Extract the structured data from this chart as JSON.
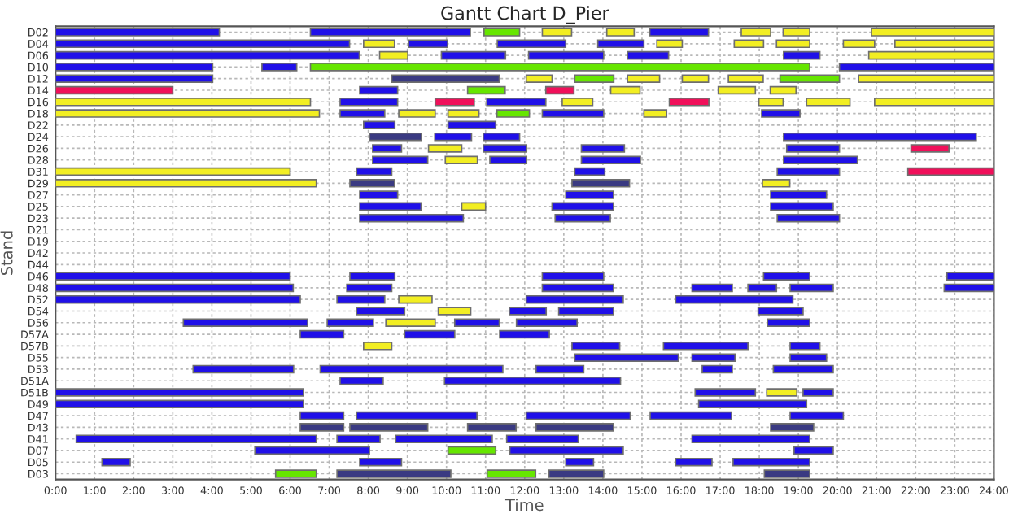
{
  "chart_data": {
    "type": "bar",
    "orientation": "horizontal",
    "title": "Gantt Chart D_Pier",
    "xlabel": "Time",
    "ylabel": "Stand",
    "categories": [
      "D02",
      "D04",
      "D06",
      "D10",
      "D12",
      "D14",
      "D16",
      "D18",
      "D22",
      "D24",
      "D26",
      "D28",
      "D31",
      "D29",
      "D27",
      "D25",
      "D23",
      "D21",
      "D19",
      "D42",
      "D44",
      "D46",
      "D48",
      "D52",
      "D54",
      "D56",
      "D57A",
      "D57B",
      "D55",
      "D53",
      "D51A",
      "D51B",
      "D49",
      "D47",
      "D43",
      "D41",
      "D07",
      "D05",
      "D03"
    ],
    "xlim": [
      0,
      24
    ],
    "xticks": [
      {
        "value": 0,
        "label": "0:00"
      },
      {
        "value": 1,
        "label": "1:00"
      },
      {
        "value": 2,
        "label": "2:00"
      },
      {
        "value": 3,
        "label": "3:00"
      },
      {
        "value": 4,
        "label": "4:00"
      },
      {
        "value": 5,
        "label": "5:00"
      },
      {
        "value": 6,
        "label": "6:00"
      },
      {
        "value": 7,
        "label": "7:00"
      },
      {
        "value": 8,
        "label": "8:00"
      },
      {
        "value": 9,
        "label": "9:00"
      },
      {
        "value": 10,
        "label": "10:00"
      },
      {
        "value": 11,
        "label": "11:00"
      },
      {
        "value": 12,
        "label": "12:00"
      },
      {
        "value": 13,
        "label": "13:00"
      },
      {
        "value": 14,
        "label": "14:00"
      },
      {
        "value": 15,
        "label": "15:00"
      },
      {
        "value": 16,
        "label": "16:00"
      },
      {
        "value": 17,
        "label": "17:00"
      },
      {
        "value": 18,
        "label": "18:00"
      },
      {
        "value": 19,
        "label": "19:00"
      },
      {
        "value": 20,
        "label": "20:00"
      },
      {
        "value": 21,
        "label": "21:00"
      },
      {
        "value": 22,
        "label": "22:00"
      },
      {
        "value": 23,
        "label": "23:00"
      },
      {
        "value": 24,
        "label": "24:00"
      }
    ],
    "grid": true,
    "series": [
      {
        "base": [
          0,
          0,
          0,
          0,
          0,
          0,
          0,
          0,
          7.88,
          8.03,
          8.11,
          8.11,
          0,
          0,
          7.78,
          7.78,
          7.78,
          null,
          null,
          null,
          null,
          0,
          0,
          0,
          7.7,
          3.27,
          6.26,
          7.88,
          13.28,
          3.52,
          7.28,
          0,
          0,
          6.26,
          6.26,
          0.53,
          5.1,
          1.19,
          5.63
        ],
        "values": [
          4.19,
          7.52,
          7.77,
          4.02,
          4.02,
          3.0,
          6.52,
          6.75,
          0.8,
          1.33,
          0.74,
          1.41,
          6.0,
          6.67,
          0.97,
          1.57,
          2.65,
          null,
          null,
          null,
          null,
          6.0,
          6.08,
          6.26,
          1.23,
          3.18,
          1.11,
          0.72,
          2.65,
          2.57,
          1.1,
          6.34,
          6.34,
          1.11,
          1.11,
          6.14,
          2.93,
          0.72,
          1.04
        ],
        "colors": [
          "#2010e8",
          "#2010e8",
          "#2010e8",
          "#2010e8",
          "#2010e8",
          "#f0105a",
          "#f2ee22",
          "#f2ee22",
          "#2010e8",
          "#3a3a82",
          "#2010e8",
          "#2010e8",
          "#f2ee22",
          "#f2ee22",
          "#2010e8",
          "#2010e8",
          "#2010e8",
          null,
          null,
          null,
          null,
          "#2010e8",
          "#2010e8",
          "#2010e8",
          "#2010e8",
          "#2010e8",
          "#2010e8",
          "#f2ee22",
          "#2010e8",
          "#2010e8",
          "#2010e8",
          "#2010e8",
          "#2010e8",
          "#2010e8",
          "#3a3a82",
          "#2010e8",
          "#2010e8",
          "#2010e8",
          "#66e600"
        ]
      },
      {
        "base": [
          6.52,
          7.88,
          8.29,
          5.28,
          8.6,
          7.78,
          7.28,
          7.28,
          10.04,
          9.7,
          9.54,
          9.97,
          7.7,
          7.53,
          13.05,
          10.39,
          12.78,
          null,
          null,
          null,
          null,
          7.53,
          7.45,
          7.2,
          9.79,
          6.95,
          8.93,
          13.21,
          16.28,
          6.77,
          9.95,
          16.36,
          16.45,
          7.7,
          7.53,
          7.2,
          10.04,
          7.78,
          7.2
        ],
        "values": [
          4.09,
          0.79,
          0.72,
          0.89,
          2.75,
          0.97,
          1.47,
          1.14,
          1.22,
          0.94,
          0.85,
          0.82,
          0.9,
          1.14,
          1.22,
          0.61,
          1.41,
          null,
          null,
          null,
          null,
          1.15,
          1.15,
          1.22,
          0.83,
          1.18,
          1.28,
          1.22,
          1.1,
          4.67,
          4.5,
          1.54,
          2.76,
          3.08,
          1.99,
          1.1,
          1.22,
          1.07,
          2.91
        ],
        "colors": [
          "#2010e8",
          "#f2ee22",
          "#f2ee22",
          "#2010e8",
          "#3a3a82",
          "#2010e8",
          "#2010e8",
          "#2010e8",
          "#2010e8",
          "#2010e8",
          "#f2ee22",
          "#f2ee22",
          "#2010e8",
          "#3a3a82",
          "#2010e8",
          "#f2ee22",
          "#2010e8",
          null,
          null,
          null,
          null,
          "#2010e8",
          "#2010e8",
          "#2010e8",
          "#f2ee22",
          "#2010e8",
          "#2010e8",
          "#2010e8",
          "#2010e8",
          "#2010e8",
          "#2010e8",
          "#2010e8",
          "#2010e8",
          "#2010e8",
          "#3a3a82",
          "#2010e8",
          "#66e600",
          "#2010e8",
          "#3a3a82"
        ]
      },
      {
        "base": [
          10.96,
          9.03,
          9.87,
          6.52,
          12.04,
          10.54,
          9.71,
          8.78,
          null,
          10.94,
          10.94,
          11.11,
          13.28,
          13.21,
          18.29,
          12.7,
          18.46,
          null,
          null,
          null,
          null,
          12.45,
          12.45,
          8.78,
          11.61,
          8.45,
          11.36,
          15.55,
          18.79,
          12.29,
          null,
          18.19,
          null,
          12.04,
          10.54,
          8.7,
          11.62,
          13.05,
          11.04
        ],
        "values": [
          0.91,
          1.0,
          1.64,
          12.77,
          0.66,
          0.96,
          1.0,
          0.93,
          null,
          0.93,
          1.11,
          0.94,
          0.77,
          1.47,
          1.43,
          1.57,
          1.59,
          null,
          null,
          null,
          null,
          1.57,
          1.82,
          0.85,
          0.94,
          1.26,
          1.27,
          2.16,
          0.93,
          1.22,
          null,
          0.77,
          null,
          2.66,
          1.24,
          2.47,
          2.9,
          0.71,
          1.24
        ],
        "colors": [
          "#66e600",
          "#2010e8",
          "#2010e8",
          "#66e600",
          "#f2ee22",
          "#66e600",
          "#f0105a",
          "#f2ee22",
          null,
          "#2010e8",
          "#2010e8",
          "#2010e8",
          "#2010e8",
          "#3a3a82",
          "#2010e8",
          "#2010e8",
          "#2010e8",
          null,
          null,
          null,
          null,
          "#2010e8",
          "#2010e8",
          "#f2ee22",
          "#2010e8",
          "#f2ee22",
          "#2010e8",
          "#2010e8",
          "#2010e8",
          "#2010e8",
          null,
          "#f2ee22",
          null,
          "#2010e8",
          "#3a3a82",
          "#2010e8",
          "#2010e8",
          "#2010e8",
          "#66e600"
        ]
      },
      {
        "base": [
          12.45,
          11.3,
          12.1,
          20.05,
          13.28,
          12.54,
          11.03,
          10.04,
          null,
          18.62,
          13.45,
          13.45,
          18.46,
          18.08,
          null,
          18.29,
          null,
          null,
          null,
          null,
          null,
          18.11,
          16.28,
          12.04,
          12.87,
          10.21,
          null,
          18.79,
          null,
          16.54,
          null,
          19.12,
          null,
          15.21,
          12.29,
          11.54,
          18.89,
          15.86,
          12.62
        ],
        "values": [
          0.75,
          1.75,
          1.92,
          3.95,
          1.0,
          0.72,
          1.51,
          0.79,
          null,
          4.93,
          1.1,
          1.51,
          1.59,
          0.7,
          null,
          1.6,
          null,
          null,
          null,
          null,
          null,
          1.18,
          1.03,
          2.48,
          1.4,
          1.14,
          null,
          0.76,
          null,
          0.77,
          null,
          0.77,
          null,
          2.08,
          1.98,
          1.83,
          1.0,
          0.93,
          1.4
        ],
        "colors": [
          "#f2ee22",
          "#2010e8",
          "#2010e8",
          "#2010e8",
          "#66e600",
          "#f0105a",
          "#2010e8",
          "#f2ee22",
          null,
          "#2010e8",
          "#2010e8",
          "#2010e8",
          "#2010e8",
          "#f2ee22",
          null,
          "#2010e8",
          null,
          null,
          null,
          null,
          null,
          "#2010e8",
          "#2010e8",
          "#2010e8",
          "#2010e8",
          "#2010e8",
          null,
          "#2010e8",
          null,
          "#2010e8",
          null,
          "#2010e8",
          null,
          "#2010e8",
          "#3a3a82",
          "#2010e8",
          "#2010e8",
          "#2010e8",
          "#3a3a82"
        ]
      },
      {
        "base": [
          14.1,
          13.87,
          14.63,
          null,
          14.63,
          14.2,
          12.96,
          11.29,
          null,
          null,
          18.7,
          18.62,
          21.8,
          null,
          null,
          null,
          null,
          null,
          null,
          null,
          null,
          22.8,
          17.71,
          15.86,
          17.97,
          11.79,
          null,
          null,
          null,
          18.36,
          null,
          null,
          null,
          18.79,
          18.29,
          16.28,
          null,
          17.33,
          18.13
        ],
        "values": [
          0.7,
          1.18,
          1.05,
          null,
          0.82,
          0.75,
          0.78,
          0.83,
          null,
          null,
          1.35,
          1.89,
          2.2,
          null,
          null,
          null,
          null,
          null,
          null,
          null,
          null,
          1.2,
          0.73,
          3.0,
          1.15,
          1.55,
          null,
          null,
          null,
          1.53,
          null,
          null,
          null,
          1.36,
          1.1,
          3.01,
          null,
          1.96,
          1.16
        ],
        "colors": [
          "#f2ee22",
          "#2010e8",
          "#2010e8",
          null,
          "#f2ee22",
          "#f2ee22",
          "#f2ee22",
          "#66e600",
          null,
          null,
          "#2010e8",
          "#2010e8",
          "#f0105a",
          null,
          null,
          null,
          null,
          null,
          null,
          null,
          null,
          "#2010e8",
          "#2010e8",
          "#2010e8",
          "#2010e8",
          "#2010e8",
          null,
          null,
          null,
          "#2010e8",
          null,
          null,
          null,
          "#2010e8",
          "#3a3a82",
          "#2010e8",
          null,
          "#2010e8",
          "#3a3a82"
        ]
      },
      {
        "base": [
          15.2,
          15.38,
          18.62,
          null,
          16.03,
          16.95,
          15.7,
          12.45,
          null,
          null,
          21.88,
          null,
          null,
          null,
          null,
          null,
          null,
          null,
          null,
          null,
          null,
          null,
          18.79,
          null,
          null,
          18.21,
          null,
          null,
          null,
          null,
          null,
          null,
          null,
          null,
          null,
          null,
          null,
          null,
          null
        ],
        "values": [
          1.5,
          0.65,
          0.93,
          null,
          0.67,
          0.95,
          1.01,
          1.57,
          null,
          null,
          0.97,
          null,
          null,
          null,
          null,
          null,
          null,
          null,
          null,
          null,
          null,
          null,
          1.1,
          null,
          null,
          1.08,
          null,
          null,
          null,
          null,
          null,
          null,
          null,
          null,
          null,
          null,
          null,
          null,
          null
        ],
        "colors": [
          "#2010e8",
          "#f2ee22",
          "#2010e8",
          null,
          "#f2ee22",
          "#f2ee22",
          "#f0105a",
          "#2010e8",
          null,
          null,
          "#f0105a",
          null,
          null,
          null,
          null,
          null,
          null,
          null,
          null,
          null,
          null,
          null,
          "#2010e8",
          null,
          null,
          "#2010e8",
          null,
          null,
          null,
          null,
          null,
          null,
          null,
          null,
          null,
          null,
          null,
          null,
          null
        ]
      },
      {
        "base": [
          17.54,
          17.36,
          20.8,
          null,
          17.21,
          18.28,
          17.99,
          15.05,
          null,
          null,
          null,
          null,
          null,
          null,
          null,
          null,
          null,
          null,
          null,
          null,
          null,
          null,
          22.73,
          null,
          null,
          null,
          null,
          null,
          null,
          null,
          null,
          null,
          null,
          null,
          null,
          null,
          null,
          null,
          null
        ],
        "values": [
          0.75,
          0.75,
          3.2,
          null,
          0.89,
          0.66,
          0.62,
          0.58,
          null,
          null,
          null,
          null,
          null,
          null,
          null,
          null,
          null,
          null,
          null,
          null,
          null,
          null,
          1.27,
          null,
          null,
          null,
          null,
          null,
          null,
          null,
          null,
          null,
          null,
          null,
          null,
          null,
          null,
          null,
          null
        ],
        "colors": [
          "#f2ee22",
          "#f2ee22",
          "#f2ee22",
          null,
          "#f2ee22",
          "#f2ee22",
          "#f2ee22",
          "#f2ee22",
          null,
          null,
          null,
          null,
          null,
          null,
          null,
          null,
          null,
          null,
          null,
          null,
          null,
          null,
          "#2010e8",
          null,
          null,
          null,
          null,
          null,
          null,
          null,
          null,
          null,
          null,
          null,
          null,
          null,
          null,
          null,
          null
        ]
      },
      {
        "base": [
          18.61,
          18.44,
          null,
          null,
          18.53,
          null,
          19.21,
          18.06,
          null,
          null,
          null,
          null,
          null,
          null,
          null,
          null,
          null,
          null,
          null,
          null,
          null,
          null,
          null,
          null,
          null,
          null,
          null,
          null,
          null,
          null,
          null,
          null,
          null,
          null,
          null,
          null,
          null,
          null,
          null
        ],
        "values": [
          0.68,
          0.85,
          null,
          null,
          1.52,
          null,
          1.11,
          0.98,
          null,
          null,
          null,
          null,
          null,
          null,
          null,
          null,
          null,
          null,
          null,
          null,
          null,
          null,
          null,
          null,
          null,
          null,
          null,
          null,
          null,
          null,
          null,
          null,
          null,
          null,
          null,
          null,
          null,
          null,
          null
        ],
        "colors": [
          "#f2ee22",
          "#f2ee22",
          null,
          null,
          "#66e600",
          null,
          "#f2ee22",
          "#2010e8",
          null,
          null,
          null,
          null,
          null,
          null,
          null,
          null,
          null,
          null,
          null,
          null,
          null,
          null,
          null,
          null,
          null,
          null,
          null,
          null,
          null,
          null,
          null,
          null,
          null,
          null,
          null,
          null,
          null,
          null,
          null
        ]
      },
      {
        "base": [
          20.87,
          20.15,
          null,
          null,
          20.54,
          null,
          20.95,
          null,
          null,
          null,
          null,
          null,
          null,
          null,
          null,
          null,
          null,
          null,
          null,
          null,
          null,
          null,
          null,
          null,
          null,
          null,
          null,
          null,
          null,
          null,
          null,
          null,
          null,
          null,
          null,
          null,
          null,
          null,
          null
        ],
        "values": [
          3.13,
          0.8,
          null,
          null,
          3.46,
          null,
          3.05,
          null,
          null,
          null,
          null,
          null,
          null,
          null,
          null,
          null,
          null,
          null,
          null,
          null,
          null,
          null,
          null,
          null,
          null,
          null,
          null,
          null,
          null,
          null,
          null,
          null,
          null,
          null,
          null,
          null,
          null,
          null,
          null
        ],
        "colors": [
          "#f2ee22",
          "#f2ee22",
          null,
          null,
          "#f2ee22",
          null,
          "#f2ee22",
          null,
          null,
          null,
          null,
          null,
          null,
          null,
          null,
          null,
          null,
          null,
          null,
          null,
          null,
          null,
          null,
          null,
          null,
          null,
          null,
          null,
          null,
          null,
          null,
          null,
          null,
          null,
          null,
          null,
          null,
          null,
          null
        ]
      },
      {
        "base": [
          null,
          21.47,
          null,
          null,
          null,
          null,
          null,
          null,
          null,
          null,
          null,
          null,
          null,
          null,
          null,
          null,
          null,
          null,
          null,
          null,
          null,
          null,
          null,
          null,
          null,
          null,
          null,
          null,
          null,
          null,
          null,
          null,
          null,
          null,
          null,
          null,
          null,
          null,
          null
        ],
        "values": [
          null,
          2.53,
          null,
          null,
          null,
          null,
          null,
          null,
          null,
          null,
          null,
          null,
          null,
          null,
          null,
          null,
          null,
          null,
          null,
          null,
          null,
          null,
          null,
          null,
          null,
          null,
          null,
          null,
          null,
          null,
          null,
          null,
          null,
          null,
          null,
          null,
          null,
          null,
          null
        ],
        "colors": [
          null,
          "#f2ee22",
          null,
          null,
          null,
          null,
          null,
          null,
          null,
          null,
          null,
          null,
          null,
          null,
          null,
          null,
          null,
          null,
          null,
          null,
          null,
          null,
          null,
          null,
          null,
          null,
          null,
          null,
          null,
          null,
          null,
          null,
          null,
          null,
          null,
          null,
          null,
          null,
          null
        ]
      }
    ]
  }
}
